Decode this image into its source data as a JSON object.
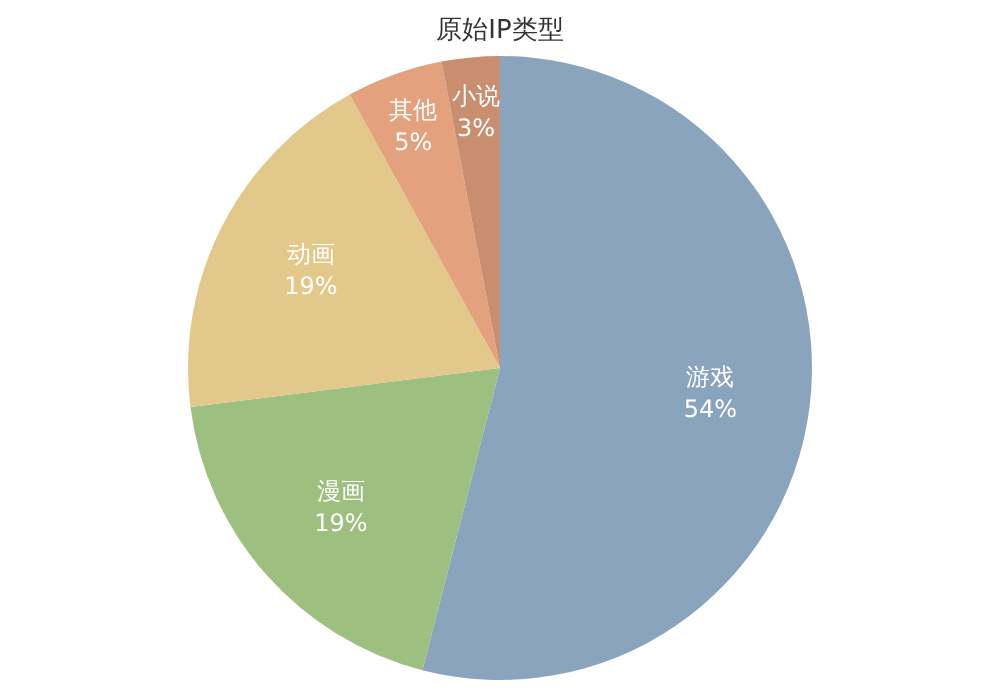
{
  "chart_data": {
    "type": "pie",
    "title": "原始IP类型",
    "categories": [
      "游戏",
      "漫画",
      "动画",
      "其他",
      "小说"
    ],
    "values": [
      54,
      19,
      19,
      5,
      3
    ],
    "colors": [
      "#8ba4be",
      "#9dbf7f",
      "#e2c98b",
      "#e3a17d",
      "#c98e6f"
    ],
    "value_labels": [
      "54%",
      "19%",
      "19%",
      "5%",
      "3%"
    ],
    "legend": false
  }
}
